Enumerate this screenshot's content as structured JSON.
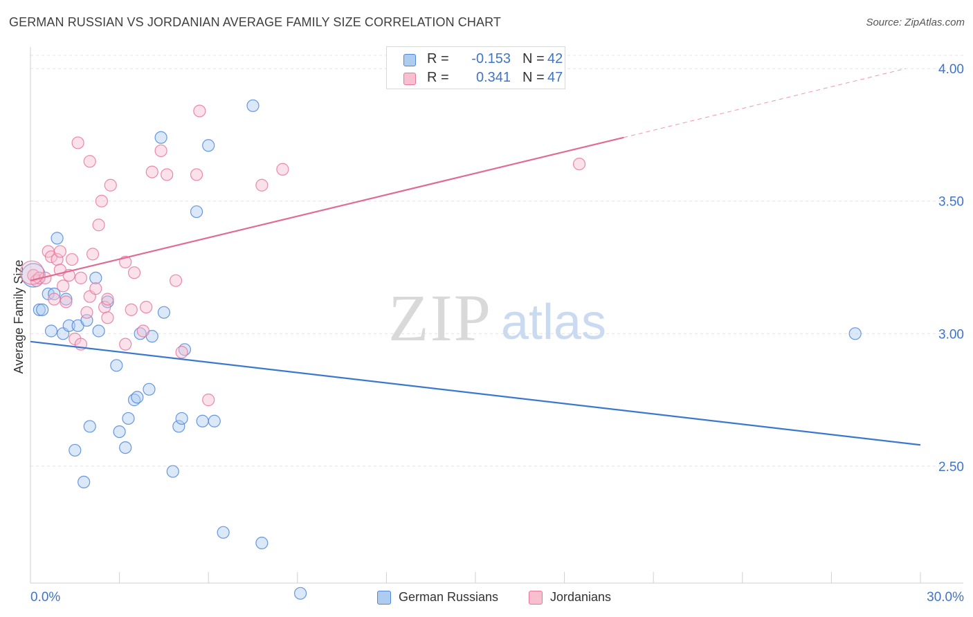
{
  "title": "GERMAN RUSSIAN VS JORDANIAN AVERAGE FAMILY SIZE CORRELATION CHART",
  "source": "Source: ZipAtlas.com",
  "watermark": {
    "zip": "ZIP",
    "atlas": "atlas"
  },
  "colors": {
    "blue": "#4f86d9",
    "blue_fill": "#aecbf0",
    "blue_line": "#3a78d0",
    "pink": "#e8769a",
    "pink_fill": "#f7bfd0",
    "pink_line": "#e06b93",
    "axis_text": "#3f74c8",
    "grid": "#e2e2e2"
  },
  "legend": {
    "r_label": "R =",
    "n_label": "N =",
    "rows": [
      {
        "name": "German Russians",
        "r": "-0.153",
        "n": "42"
      },
      {
        "name": "Jordanians",
        "r": "0.341",
        "n": "47"
      }
    ]
  },
  "chart_data": {
    "type": "scatter",
    "ylabel": "Average Family Size",
    "xlim": [
      0,
      30
    ],
    "ylim": [
      2.03,
      4.05
    ],
    "x_tick_labels": [
      "0.0%",
      "30.0%"
    ],
    "y_ticks": [
      2.5,
      3.0,
      3.5,
      4.0
    ],
    "y_tick_labels": [
      "2.50",
      "3.00",
      "3.50",
      "4.00"
    ],
    "grid": true,
    "series": [
      {
        "name": "German Russians",
        "r": -0.153,
        "n": 42,
        "points": [
          [
            0.3,
            3.09
          ],
          [
            0.4,
            3.09
          ],
          [
            0.6,
            3.15
          ],
          [
            0.7,
            3.01
          ],
          [
            0.8,
            3.15
          ],
          [
            0.9,
            3.36
          ],
          [
            1.1,
            3.0
          ],
          [
            1.2,
            3.13
          ],
          [
            1.3,
            3.03
          ],
          [
            1.5,
            2.56
          ],
          [
            1.6,
            3.03
          ],
          [
            1.8,
            2.44
          ],
          [
            1.9,
            3.05
          ],
          [
            2.0,
            2.65
          ],
          [
            2.2,
            3.21
          ],
          [
            2.3,
            3.01
          ],
          [
            2.6,
            3.12
          ],
          [
            2.9,
            2.88
          ],
          [
            3.0,
            2.63
          ],
          [
            3.2,
            2.57
          ],
          [
            3.3,
            2.68
          ],
          [
            3.5,
            2.75
          ],
          [
            3.6,
            2.76
          ],
          [
            3.7,
            3.0
          ],
          [
            4.0,
            2.79
          ],
          [
            4.1,
            2.99
          ],
          [
            4.4,
            3.74
          ],
          [
            4.5,
            3.08
          ],
          [
            4.8,
            2.48
          ],
          [
            5.0,
            2.65
          ],
          [
            5.1,
            2.68
          ],
          [
            5.2,
            2.94
          ],
          [
            5.6,
            3.46
          ],
          [
            5.8,
            2.67
          ],
          [
            6.0,
            3.71
          ],
          [
            6.2,
            2.67
          ],
          [
            6.5,
            2.25
          ],
          [
            7.5,
            3.86
          ],
          [
            7.8,
            2.21
          ],
          [
            9.1,
            2.02
          ],
          [
            27.8,
            3.0
          ],
          [
            0.1,
            3.22
          ]
        ],
        "trend": {
          "x0": 0,
          "y0": 2.97,
          "x1": 30,
          "y1": 2.58
        }
      },
      {
        "name": "Jordanians",
        "r": 0.341,
        "n": 47,
        "points": [
          [
            0.1,
            3.22
          ],
          [
            0.2,
            3.2
          ],
          [
            0.3,
            3.21
          ],
          [
            0.5,
            3.21
          ],
          [
            0.6,
            3.31
          ],
          [
            0.7,
            3.29
          ],
          [
            0.8,
            3.13
          ],
          [
            0.9,
            3.28
          ],
          [
            1.0,
            3.31
          ],
          [
            1.0,
            3.24
          ],
          [
            1.1,
            3.18
          ],
          [
            1.2,
            3.12
          ],
          [
            1.3,
            3.22
          ],
          [
            1.4,
            3.28
          ],
          [
            1.5,
            2.98
          ],
          [
            1.6,
            3.72
          ],
          [
            1.7,
            2.96
          ],
          [
            1.7,
            3.21
          ],
          [
            1.9,
            3.08
          ],
          [
            2.0,
            3.14
          ],
          [
            2.0,
            3.65
          ],
          [
            2.1,
            3.3
          ],
          [
            2.2,
            3.17
          ],
          [
            2.3,
            3.41
          ],
          [
            2.4,
            3.5
          ],
          [
            2.5,
            3.1
          ],
          [
            2.6,
            3.13
          ],
          [
            2.6,
            3.06
          ],
          [
            2.7,
            3.56
          ],
          [
            3.2,
            3.27
          ],
          [
            3.2,
            2.96
          ],
          [
            3.4,
            3.09
          ],
          [
            3.5,
            3.23
          ],
          [
            3.8,
            3.01
          ],
          [
            3.9,
            3.1
          ],
          [
            4.1,
            3.61
          ],
          [
            4.4,
            3.69
          ],
          [
            4.6,
            3.6
          ],
          [
            4.9,
            3.2
          ],
          [
            5.1,
            2.93
          ],
          [
            5.6,
            3.6
          ],
          [
            5.7,
            3.84
          ],
          [
            6.0,
            2.75
          ],
          [
            7.8,
            3.56
          ],
          [
            8.5,
            3.62
          ],
          [
            18.5,
            3.64
          ],
          [
            0.05,
            3.23
          ]
        ],
        "trend": {
          "x0": 0,
          "y0": 3.2,
          "x1": 20.0,
          "y1": 3.74
        },
        "trend_dashed_to": {
          "x": 29.5,
          "y": 4.0
        }
      }
    ]
  }
}
